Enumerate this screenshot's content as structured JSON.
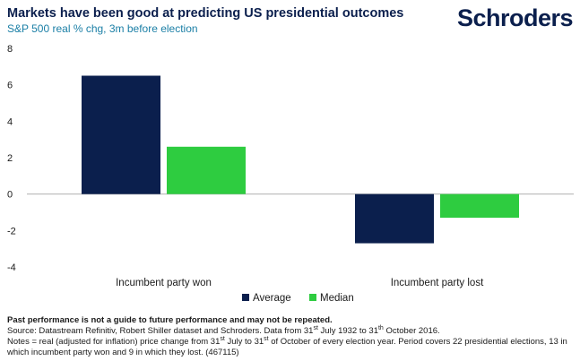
{
  "header": {
    "title": "Markets have been good at predicting US presidential outcomes",
    "subtitle": "S&P 500 real % chg, 3m before election",
    "logo": "Schroders"
  },
  "colors": {
    "average": "#0b1f4d",
    "median": "#2ecc40",
    "title": "#0b1f4d",
    "subtitle": "#1b7fa6"
  },
  "chart_data": {
    "type": "bar",
    "categories": [
      "Incumbent party won",
      "Incumbent party lost"
    ],
    "series": [
      {
        "name": "Average",
        "values": [
          6.5,
          -2.7
        ]
      },
      {
        "name": "Median",
        "values": [
          2.6,
          -1.3
        ]
      }
    ],
    "ylim": [
      -4,
      8
    ],
    "yticks": [
      -4,
      -2,
      0,
      2,
      4,
      6,
      8
    ],
    "ytick_labels": [
      "-4",
      "-2",
      "0",
      "2",
      "4",
      "6",
      "8"
    ],
    "legend_position": "bottom",
    "grid": false
  },
  "footer": {
    "disclaimer": "Past performance is not a guide to future performance and may not be repeated.",
    "source_a": "Source: Datastream Refinitiv, Robert Shiller dataset and Schroders. Data from 31",
    "source_sup1": "st",
    "source_b": " July 1932 to 31",
    "source_sup2": "th",
    "source_c": " October 2016.",
    "notes_a": "Notes = real (adjusted for inflation) price change from 31",
    "notes_sup1": "st",
    "notes_b": " July to 31",
    "notes_sup2": "st",
    "notes_c": " of October of every election year. Period covers 22 presidential elections, 13 in which incumbent party won and 9 in which they lost. (467115)"
  }
}
